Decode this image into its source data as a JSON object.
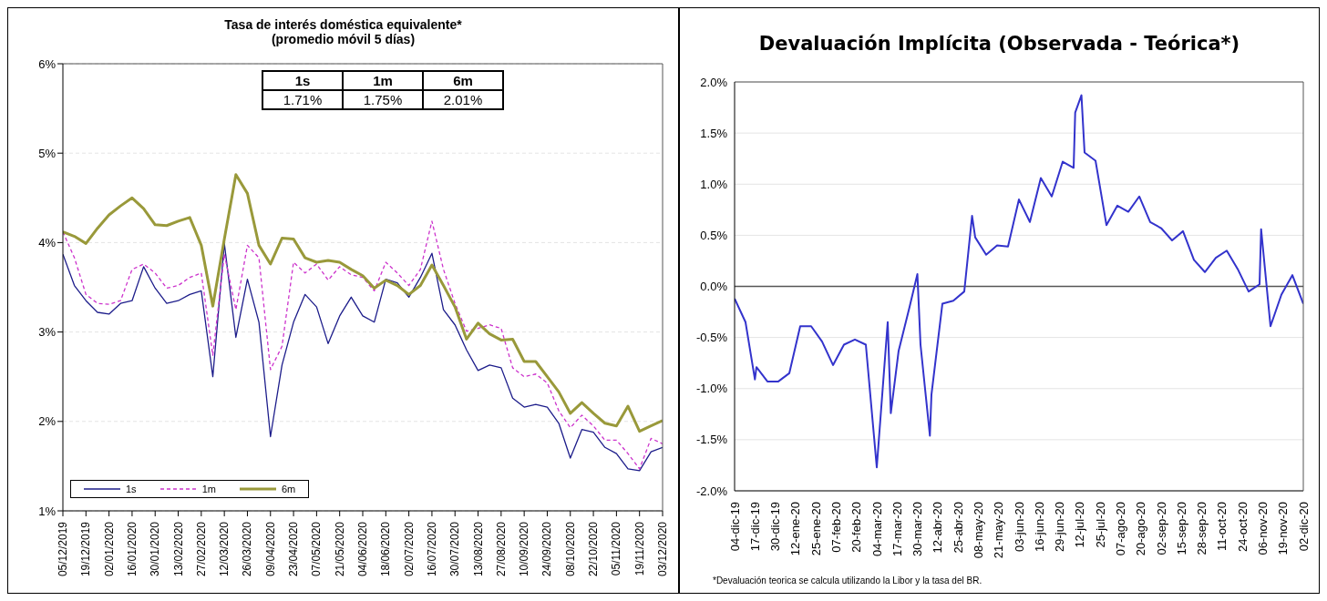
{
  "chart_data": [
    {
      "type": "line",
      "title": "Tasa de interés doméstica equivalente*",
      "subtitle": "(promedio móvil 5 días)",
      "x": [
        "2019-12-05",
        "2019-12-12",
        "2019-12-19",
        "2019-12-26",
        "2020-01-02",
        "2020-01-09",
        "2020-01-16",
        "2020-01-23",
        "2020-01-30",
        "2020-02-06",
        "2020-02-13",
        "2020-02-20",
        "2020-02-27",
        "2020-03-05",
        "2020-03-12",
        "2020-03-19",
        "2020-03-26",
        "2020-04-02",
        "2020-04-09",
        "2020-04-16",
        "2020-04-23",
        "2020-04-30",
        "2020-05-07",
        "2020-05-14",
        "2020-05-21",
        "2020-05-28",
        "2020-06-04",
        "2020-06-11",
        "2020-06-18",
        "2020-06-25",
        "2020-07-02",
        "2020-07-09",
        "2020-07-16",
        "2020-07-23",
        "2020-07-30",
        "2020-08-06",
        "2020-08-13",
        "2020-08-20",
        "2020-08-27",
        "2020-09-03",
        "2020-09-10",
        "2020-09-17",
        "2020-09-24",
        "2020-10-01",
        "2020-10-08",
        "2020-10-15",
        "2020-10-22",
        "2020-10-29",
        "2020-11-05",
        "2020-11-12",
        "2020-11-19",
        "2020-11-26",
        "2020-12-03"
      ],
      "series": [
        {
          "name": "1s",
          "color": "#1c1c8a",
          "line_style": "solid",
          "values": [
            3.87,
            3.52,
            3.35,
            3.22,
            3.2,
            3.32,
            3.35,
            3.73,
            3.49,
            3.32,
            3.35,
            3.42,
            3.46,
            2.5,
            3.99,
            2.94,
            3.59,
            3.11,
            1.83,
            2.63,
            3.11,
            3.42,
            3.28,
            2.87,
            3.18,
            3.39,
            3.18,
            3.11,
            3.59,
            3.55,
            3.39,
            3.61,
            3.88,
            3.25,
            3.08,
            2.8,
            2.57,
            2.63,
            2.6,
            2.26,
            2.16,
            2.19,
            2.16,
            1.98,
            1.59,
            1.91,
            1.88,
            1.71,
            1.64,
            1.47,
            1.45,
            1.66,
            1.71
          ]
        },
        {
          "name": "1m",
          "color": "#cc33cc",
          "line_style": "dashed",
          "values": [
            4.12,
            3.83,
            3.42,
            3.32,
            3.31,
            3.35,
            3.7,
            3.76,
            3.66,
            3.49,
            3.52,
            3.61,
            3.66,
            2.74,
            3.87,
            3.25,
            3.97,
            3.83,
            2.58,
            2.84,
            3.78,
            3.66,
            3.76,
            3.58,
            3.73,
            3.64,
            3.61,
            3.46,
            3.78,
            3.66,
            3.52,
            3.7,
            4.24,
            3.7,
            3.32,
            3.01,
            3.04,
            3.08,
            3.04,
            2.6,
            2.5,
            2.53,
            2.43,
            2.12,
            1.93,
            2.07,
            1.95,
            1.79,
            1.79,
            1.64,
            1.47,
            1.81,
            1.75
          ]
        },
        {
          "name": "6m",
          "color": "#99993a",
          "line_style": "solid",
          "values": [
            4.12,
            4.07,
            3.99,
            4.16,
            4.31,
            4.41,
            4.5,
            4.38,
            4.2,
            4.19,
            4.24,
            4.28,
            3.97,
            3.29,
            4.04,
            4.76,
            4.55,
            3.97,
            3.76,
            4.05,
            4.04,
            3.83,
            3.78,
            3.8,
            3.78,
            3.7,
            3.63,
            3.49,
            3.58,
            3.52,
            3.42,
            3.52,
            3.75,
            3.52,
            3.28,
            2.92,
            3.1,
            2.98,
            2.91,
            2.92,
            2.67,
            2.67,
            2.5,
            2.33,
            2.09,
            2.21,
            2.09,
            1.98,
            1.95,
            2.17,
            1.89,
            1.95,
            2.01
          ]
        }
      ],
      "annotations": [
        "1.71%",
        "1.75%",
        "2.01%"
      ],
      "xlim": [
        "2019-12-05",
        "2020-12-03"
      ],
      "xticks": [
        {
          "value": "2019-12-05",
          "label": "05/12/2019"
        },
        {
          "value": "2019-12-19",
          "label": "19/12/2019"
        },
        {
          "value": "2020-01-02",
          "label": "02/01/2020"
        },
        {
          "value": "2020-01-16",
          "label": "16/01/2020"
        },
        {
          "value": "2020-01-30",
          "label": "30/01/2020"
        },
        {
          "value": "2020-02-13",
          "label": "13/02/2020"
        },
        {
          "value": "2020-02-27",
          "label": "27/02/2020"
        },
        {
          "value": "2020-03-12",
          "label": "12/03/2020"
        },
        {
          "value": "2020-03-26",
          "label": "26/03/2020"
        },
        {
          "value": "2020-04-09",
          "label": "09/04/2020"
        },
        {
          "value": "2020-04-23",
          "label": "23/04/2020"
        },
        {
          "value": "2020-05-07",
          "label": "07/05/2020"
        },
        {
          "value": "2020-05-21",
          "label": "21/05/2020"
        },
        {
          "value": "2020-06-04",
          "label": "04/06/2020"
        },
        {
          "value": "2020-06-18",
          "label": "18/06/2020"
        },
        {
          "value": "2020-07-02",
          "label": "02/07/2020"
        },
        {
          "value": "2020-07-16",
          "label": "16/07/2020"
        },
        {
          "value": "2020-07-30",
          "label": "30/07/2020"
        },
        {
          "value": "2020-08-13",
          "label": "13/08/2020"
        },
        {
          "value": "2020-08-27",
          "label": "27/08/2020"
        },
        {
          "value": "2020-09-10",
          "label": "10/09/2020"
        },
        {
          "value": "2020-09-24",
          "label": "24/09/2020"
        },
        {
          "value": "2020-10-08",
          "label": "08/10/2020"
        },
        {
          "value": "2020-10-22",
          "label": "22/10/2020"
        },
        {
          "value": "2020-11-05",
          "label": "05/11/2020"
        },
        {
          "value": "2020-11-19",
          "label": "19/11/2020"
        },
        {
          "value": "2020-12-03",
          "label": "03/12/2020"
        }
      ],
      "ylim": [
        1,
        6
      ],
      "yticks": [
        {
          "value": 1,
          "label": "1%"
        },
        {
          "value": 2,
          "label": "2%"
        },
        {
          "value": 3,
          "label": "3%"
        },
        {
          "value": 4,
          "label": "4%"
        },
        {
          "value": 5,
          "label": "5%"
        },
        {
          "value": 6,
          "label": "6%"
        }
      ],
      "grid": "y",
      "legend": "bottom left"
    },
    {
      "type": "line",
      "title": "Devaluación Implícita (Observada - Teórica*)",
      "x": [
        "2019-12-04",
        "2019-12-11",
        "2019-12-17",
        "2019-12-18",
        "2019-12-25",
        "2020-01-01",
        "2020-01-08",
        "2020-01-15",
        "2020-01-22",
        "2020-01-29",
        "2020-02-05",
        "2020-02-12",
        "2020-02-19",
        "2020-02-26",
        "2020-03-04",
        "2020-03-11",
        "2020-03-13",
        "2020-03-18",
        "2020-03-25",
        "2020-03-30",
        "2020-04-01",
        "2020-04-07",
        "2020-04-08",
        "2020-04-15",
        "2020-04-22",
        "2020-04-29",
        "2020-05-04",
        "2020-05-06",
        "2020-05-13",
        "2020-05-20",
        "2020-05-27",
        "2020-06-03",
        "2020-06-10",
        "2020-06-17",
        "2020-06-24",
        "2020-07-01",
        "2020-07-08",
        "2020-07-09",
        "2020-07-13",
        "2020-07-15",
        "2020-07-22",
        "2020-07-29",
        "2020-08-05",
        "2020-08-12",
        "2020-08-19",
        "2020-08-26",
        "2020-09-02",
        "2020-09-09",
        "2020-09-16",
        "2020-09-23",
        "2020-09-30",
        "2020-10-07",
        "2020-10-14",
        "2020-10-21",
        "2020-10-28",
        "2020-11-04",
        "2020-11-05",
        "2020-11-11",
        "2020-11-18",
        "2020-11-25",
        "2020-12-02"
      ],
      "series": [
        {
          "color": "#3333cc",
          "line_style": "solid",
          "values": [
            -0.12,
            -0.35,
            -0.91,
            -0.79,
            -0.93,
            -0.93,
            -0.85,
            -0.39,
            -0.39,
            -0.54,
            -0.77,
            -0.57,
            -0.52,
            -0.57,
            -1.77,
            -0.35,
            -1.24,
            -0.63,
            -0.2,
            0.12,
            -0.57,
            -1.46,
            -1.06,
            -0.17,
            -0.14,
            -0.05,
            0.69,
            0.48,
            0.31,
            0.4,
            0.39,
            0.85,
            0.63,
            1.06,
            0.88,
            1.22,
            1.16,
            1.7,
            1.87,
            1.31,
            1.23,
            0.6,
            0.79,
            0.73,
            0.88,
            0.63,
            0.57,
            0.45,
            0.54,
            0.26,
            0.14,
            0.28,
            0.35,
            0.17,
            -0.05,
            0.02,
            0.56,
            -0.39,
            -0.08,
            0.11,
            -0.17
          ]
        }
      ],
      "xlim": [
        "2019-12-04",
        "2020-12-02"
      ],
      "xticks": [
        {
          "value": "2019-12-04",
          "label": "04-dic-19"
        },
        {
          "value": "2019-12-17",
          "label": "17-dic-19"
        },
        {
          "value": "2019-12-30",
          "label": "30-dic-19"
        },
        {
          "value": "2020-01-12",
          "label": "12-ene-20"
        },
        {
          "value": "2020-01-25",
          "label": "25-ene-20"
        },
        {
          "value": "2020-02-07",
          "label": "07-feb-20"
        },
        {
          "value": "2020-02-20",
          "label": "20-feb-20"
        },
        {
          "value": "2020-03-04",
          "label": "04-mar-20"
        },
        {
          "value": "2020-03-17",
          "label": "17-mar-20"
        },
        {
          "value": "2020-03-30",
          "label": "30-mar-20"
        },
        {
          "value": "2020-04-12",
          "label": "12-abr-20"
        },
        {
          "value": "2020-04-25",
          "label": "25-abr-20"
        },
        {
          "value": "2020-05-08",
          "label": "08-may-20"
        },
        {
          "value": "2020-05-21",
          "label": "21-may-20"
        },
        {
          "value": "2020-06-03",
          "label": "03-jun-20"
        },
        {
          "value": "2020-06-16",
          "label": "16-jun-20"
        },
        {
          "value": "2020-06-29",
          "label": "29-jun-20"
        },
        {
          "value": "2020-07-12",
          "label": "12-jul-20"
        },
        {
          "value": "2020-07-25",
          "label": "25-jul-20"
        },
        {
          "value": "2020-08-07",
          "label": "07-ago-20"
        },
        {
          "value": "2020-08-20",
          "label": "20-ago-20"
        },
        {
          "value": "2020-09-02",
          "label": "02-sep-20"
        },
        {
          "value": "2020-09-15",
          "label": "15-sep-20"
        },
        {
          "value": "2020-09-28",
          "label": "28-sep-20"
        },
        {
          "value": "2020-10-11",
          "label": "11-oct-20"
        },
        {
          "value": "2020-10-24",
          "label": "24-oct-20"
        },
        {
          "value": "2020-11-06",
          "label": "06-nov-20"
        },
        {
          "value": "2020-11-19",
          "label": "19-nov-20"
        },
        {
          "value": "2020-12-02",
          "label": "02-dic-20"
        }
      ],
      "ylim": [
        -2,
        2
      ],
      "yticks": [
        {
          "value": -2,
          "label": "-2.0%"
        },
        {
          "value": -1.5,
          "label": "-1.5%"
        },
        {
          "value": -1,
          "label": "-1.0%"
        },
        {
          "value": -0.5,
          "label": "-0.5%"
        },
        {
          "value": 0,
          "label": "0.0%"
        },
        {
          "value": 0.5,
          "label": "0.5%"
        },
        {
          "value": 1,
          "label": "1.0%"
        },
        {
          "value": 1.5,
          "label": "1.5%"
        },
        {
          "value": 2,
          "label": "2.0%"
        }
      ],
      "ref_lines": [
        {
          "axis": "y",
          "value": 0,
          "color": "#555555"
        }
      ],
      "grid": "y",
      "annotations": [
        "*Devaluación teorica se calcula utilizando la Libor y la tasa del BR."
      ]
    }
  ]
}
